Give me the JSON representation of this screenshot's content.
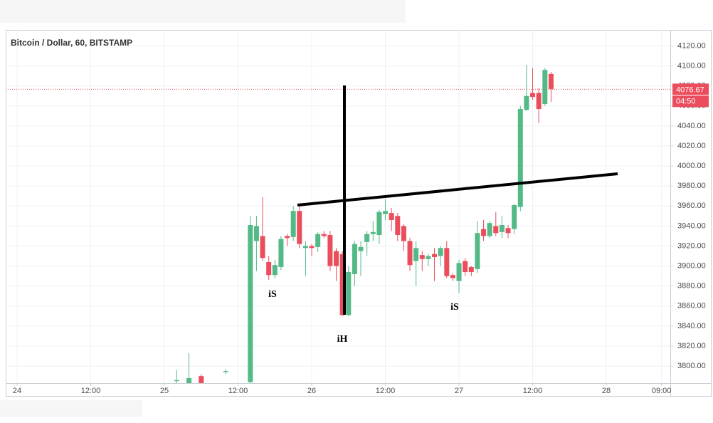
{
  "chart_data": {
    "type": "candlestick",
    "title": "Bitcoin / Dollar, 60, BITSTAMP",
    "x": [
      26,
      28,
      30,
      34,
      38,
      39,
      40,
      41,
      42,
      43,
      44,
      45,
      46,
      47,
      48,
      49,
      50,
      51,
      52,
      53,
      54,
      55,
      56,
      57,
      58,
      59,
      60,
      61,
      62,
      63,
      64,
      65,
      66,
      67,
      68,
      69,
      70,
      71,
      72,
      73,
      74,
      75,
      76,
      77,
      78,
      79,
      80,
      81,
      82,
      83,
      84,
      85,
      86,
      87
    ],
    "open": [
      3785,
      3783,
      3790,
      3794,
      3784,
      3925,
      3930,
      3904,
      3891,
      3899,
      3930,
      3929,
      3955,
      3918,
      3920,
      3919,
      3932,
      3931,
      3915,
      3912,
      3851,
      3892,
      3915,
      3924,
      3932,
      3931,
      3952,
      3953,
      3950,
      3940,
      3925,
      3905,
      3911,
      3907,
      3912,
      3910,
      3918,
      3891,
      3885,
      3905,
      3899,
      3897,
      3937,
      3930,
      3940,
      3934,
      3938,
      3937,
      3959,
      4056,
      4073,
      4073,
      4062,
      4092
    ],
    "high": [
      3796,
      3813,
      3792,
      3797,
      3950,
      3950,
      3969,
      3910,
      3906,
      3930,
      3932,
      3960,
      3960,
      3925,
      3922,
      3934,
      3935,
      3935,
      3918,
      3915,
      3900,
      3925,
      3925,
      3935,
      3945,
      3956,
      3967,
      3958,
      3953,
      3942,
      3928,
      3925,
      3915,
      3912,
      3918,
      3920,
      3925,
      3893,
      3906,
      3908,
      3900,
      3945,
      3946,
      3945,
      3954,
      3950,
      3941,
      3962,
      4060,
      4101,
      4098,
      4078,
      4098,
      4094
    ],
    "low": [
      3783,
      3783,
      3783,
      3792,
      3783,
      3895,
      3905,
      3886,
      3888,
      3896,
      3920,
      3925,
      3918,
      3890,
      3910,
      3914,
      3928,
      3895,
      3885,
      3850,
      3850,
      3880,
      3890,
      3910,
      3925,
      3922,
      3946,
      3935,
      3925,
      3915,
      3895,
      3880,
      3895,
      3900,
      3885,
      3900,
      3888,
      3885,
      3873,
      3890,
      3890,
      3893,
      3925,
      3928,
      3930,
      3928,
      3928,
      3932,
      3955,
      4055,
      4066,
      4043,
      4060,
      4064
    ],
    "close": [
      3786,
      3788,
      3783,
      3795,
      3941,
      3940,
      3908,
      3891,
      3901,
      3927,
      3928,
      3955,
      3922,
      3920,
      3918,
      3932,
      3930,
      3900,
      3900,
      3851,
      3894,
      3922,
      3919,
      3932,
      3934,
      3954,
      3955,
      3946,
      3931,
      3925,
      3901,
      3918,
      3907,
      3910,
      3909,
      3918,
      3890,
      3888,
      3903,
      3894,
      3894,
      3933,
      3930,
      3943,
      3933,
      3941,
      3933,
      3961,
      4057,
      4070,
      4069,
      4057,
      4096,
      4077
    ],
    "up_color": "#53b987",
    "down_color": "#eb4d5c",
    "xlim": [
      -1.86,
      106.43
    ],
    "xticks": [
      {
        "value": 0,
        "label": "24"
      },
      {
        "value": 12,
        "label": "12:00"
      },
      {
        "value": 24,
        "label": "25"
      },
      {
        "value": 36,
        "label": "12:00"
      },
      {
        "value": 48,
        "label": "26"
      },
      {
        "value": 60,
        "label": "12:00"
      },
      {
        "value": 72,
        "label": "27"
      },
      {
        "value": 84,
        "label": "12:00"
      },
      {
        "value": 96,
        "label": "28"
      },
      {
        "value": 105,
        "label": "09:00"
      }
    ],
    "ylim": [
      3783,
      4136
    ],
    "yticks": [
      {
        "value": 3800,
        "label": "3800.00"
      },
      {
        "value": 3820,
        "label": "3820.00"
      },
      {
        "value": 3840,
        "label": "3840.00"
      },
      {
        "value": 3860,
        "label": "3860.00"
      },
      {
        "value": 3880,
        "label": "3880.00"
      },
      {
        "value": 3900,
        "label": "3900.00"
      },
      {
        "value": 3920,
        "label": "3920.00"
      },
      {
        "value": 3940,
        "label": "3940.00"
      },
      {
        "value": 3960,
        "label": "3960.00"
      },
      {
        "value": 3980,
        "label": "3980.00"
      },
      {
        "value": 4000,
        "label": "4000.00"
      },
      {
        "value": 4020,
        "label": "4020.00"
      },
      {
        "value": 4040,
        "label": "4040.00"
      },
      {
        "value": 4060,
        "label": "4060.00"
      },
      {
        "value": 4080,
        "label": "4080.00"
      },
      {
        "value": 4100,
        "label": "4100.00"
      },
      {
        "value": 4120,
        "label": "4120.00"
      }
    ],
    "grid": true,
    "last_price": 4076.67,
    "countdown": "04:50",
    "annotations": [
      "iS",
      "iH",
      "iS"
    ]
  }
}
